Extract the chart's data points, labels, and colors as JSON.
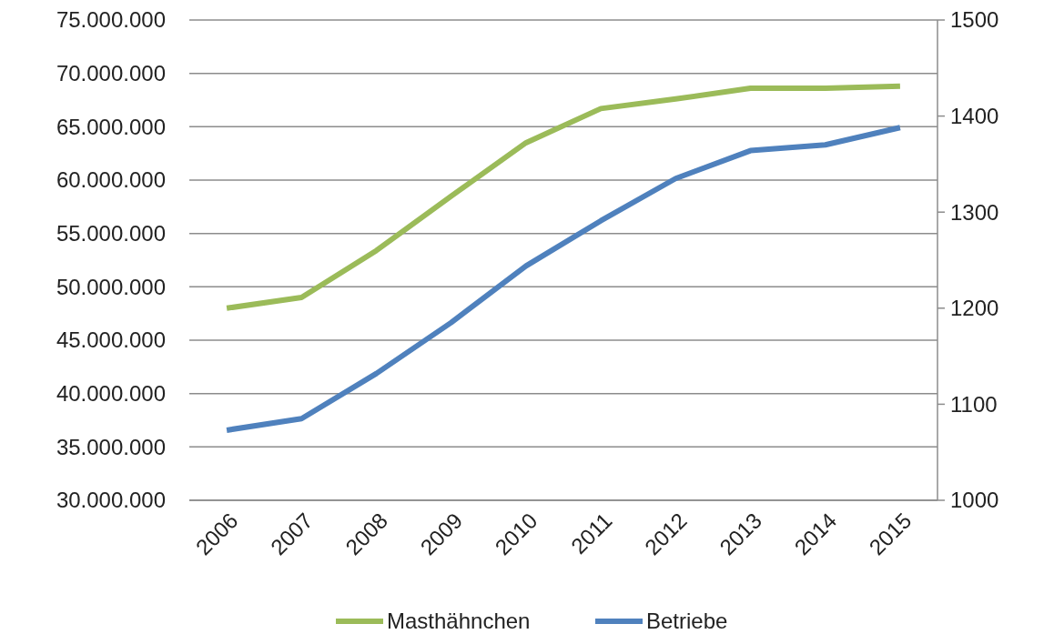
{
  "chart_data": {
    "type": "line",
    "categories": [
      "2006",
      "2007",
      "2008",
      "2009",
      "2010",
      "2011",
      "2012",
      "2013",
      "2014",
      "2015"
    ],
    "series": [
      {
        "name": "Masthähnchen",
        "color": "#9bbb59",
        "values": [
          48000000,
          49000000,
          53400000,
          58500000,
          63500000,
          66700000,
          67600000,
          68600000,
          68600000,
          68800000
        ]
      },
      {
        "name": "Betriebe",
        "color": "#4f81bd",
        "axis": "y2",
        "values": [
          1073,
          1085,
          1132,
          1185,
          1244,
          1291,
          1335,
          1364,
          1370,
          1388
        ]
      }
    ],
    "ylim": [
      30000000,
      75000000
    ],
    "yticks": [
      {
        "value": 30000000,
        "label": "30.000.000"
      },
      {
        "value": 35000000,
        "label": "35.000.000"
      },
      {
        "value": 40000000,
        "label": "40.000.000"
      },
      {
        "value": 45000000,
        "label": "45.000.000"
      },
      {
        "value": 50000000,
        "label": "50.000.000"
      },
      {
        "value": 55000000,
        "label": "55.000.000"
      },
      {
        "value": 60000000,
        "label": "60.000.000"
      },
      {
        "value": 65000000,
        "label": "65.000.000"
      },
      {
        "value": 70000000,
        "label": "70.000.000"
      },
      {
        "value": 75000000,
        "label": "75.000.000"
      }
    ],
    "y2lim": [
      1000,
      1500
    ],
    "y2ticks": [
      1000,
      1100,
      1200,
      1300,
      1400,
      1500
    ],
    "grid": "y",
    "legend": "bottom",
    "marker": "none",
    "line_style": "solid"
  }
}
